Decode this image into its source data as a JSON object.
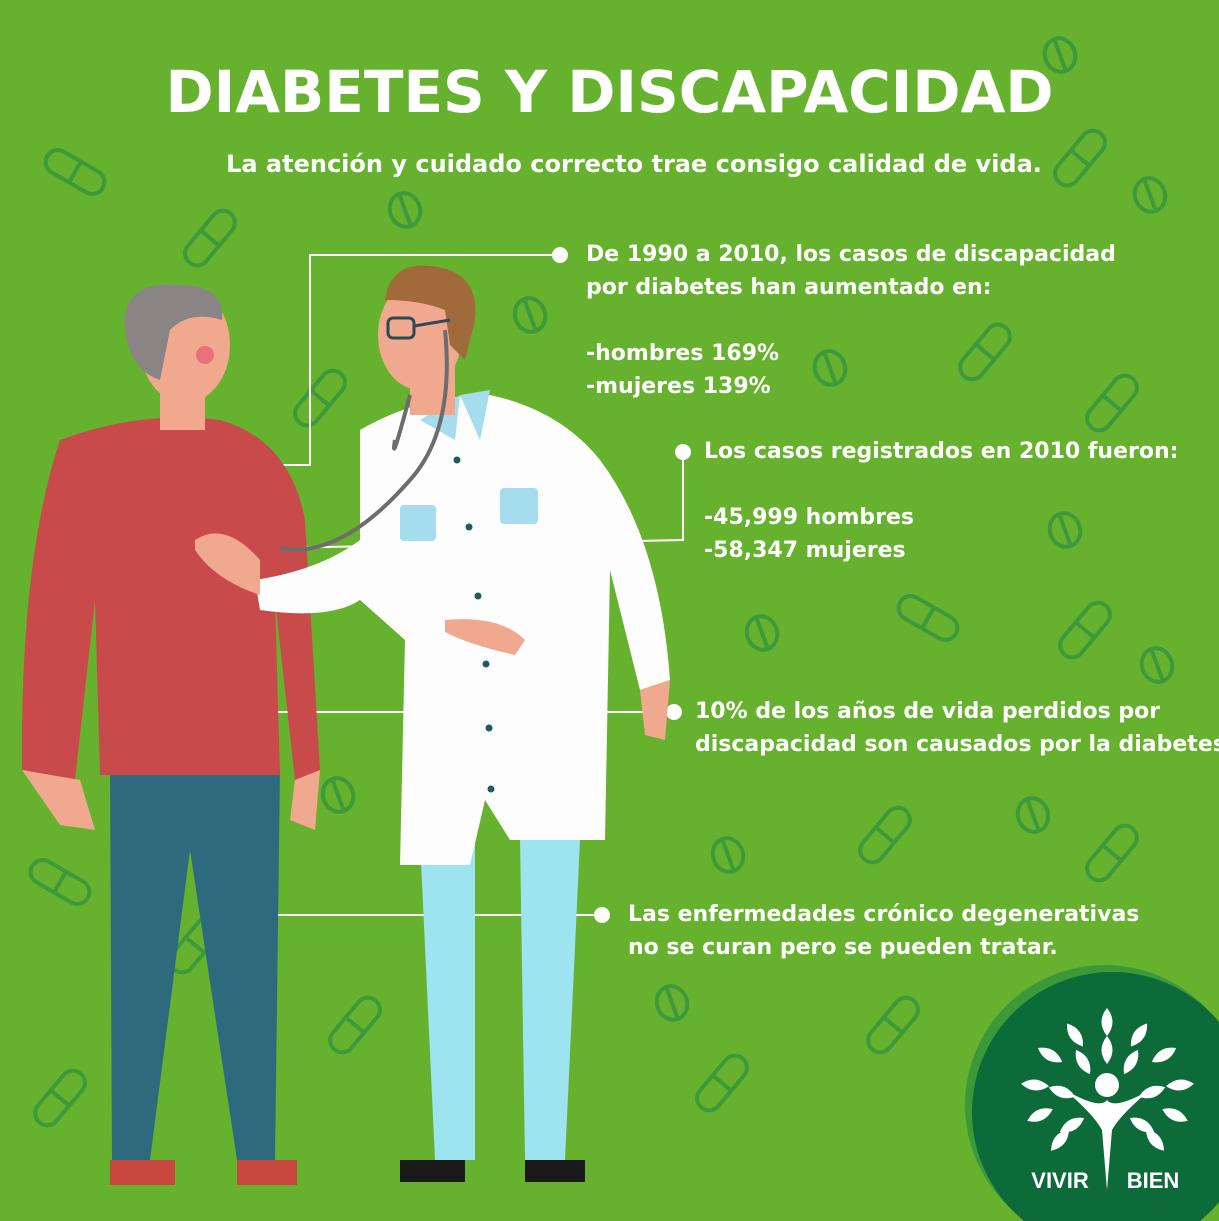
{
  "title": "DIABETES Y DISCAPACIDAD",
  "subtitle": "La atención y cuidado correcto trae consigo calidad de vida.",
  "facts": [
    {
      "lines": [
        "De 1990 a 2010, los casos de discapacidad",
        "por diabetes han aumentado en:"
      ],
      "details": [
        "-hombres 169%",
        "-mujeres 139%"
      ]
    },
    {
      "lines": [
        "Los casos registrados en 2010 fueron:"
      ],
      "details": [
        "-45,999 hombres",
        "-58,347 mujeres"
      ]
    },
    {
      "lines": [
        "10% de los años de vida perdidos por",
        "discapacidad son causados por la diabetes."
      ]
    },
    {
      "lines": [
        "Las enfermedades crónico degenerativas",
        "no se curan pero se pueden tratar."
      ]
    }
  ],
  "logo": {
    "left_word": "VIVIR",
    "right_word": "BIEN"
  },
  "colors": {
    "background": "#66b22e",
    "pill_outline": "#3d9a3a",
    "logo_circle": "#0d6b3a",
    "text": "#ffffff"
  },
  "icons": [
    "pill-icon",
    "tablet-icon",
    "tree-person-logo"
  ]
}
